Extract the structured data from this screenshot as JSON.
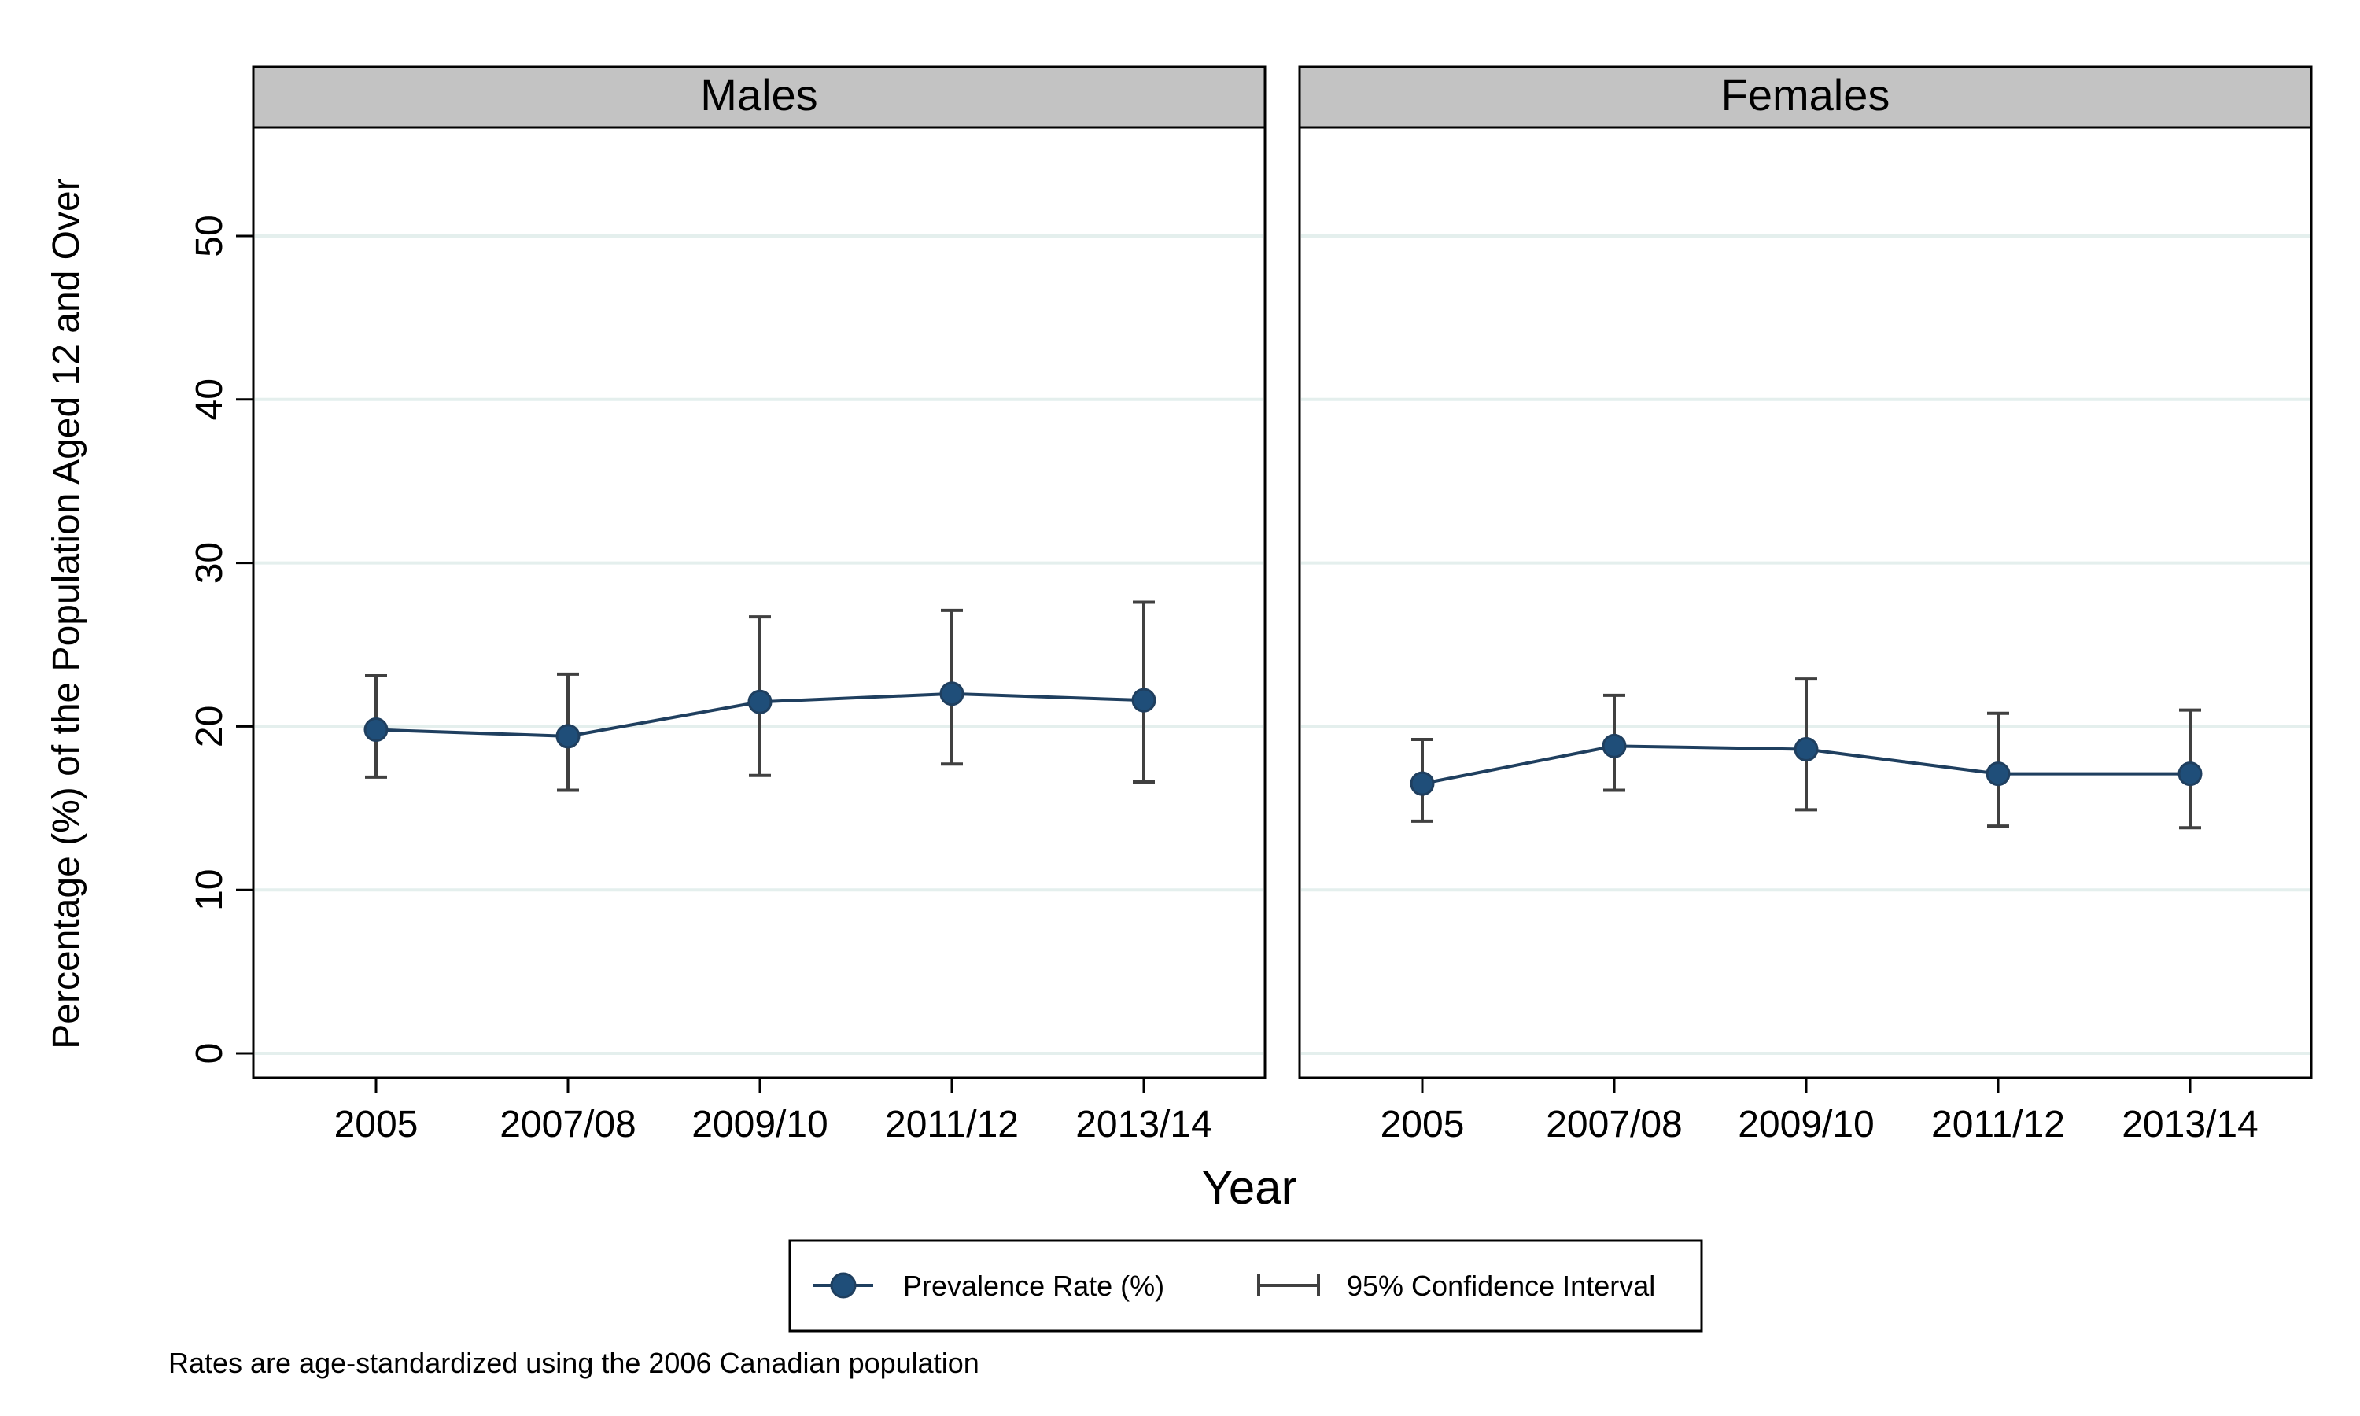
{
  "chart_data": {
    "type": "line",
    "ylabel": "Percentage (%) of the Population Aged 12 and Over",
    "xlabel": "Year",
    "ylim": [
      0,
      55
    ],
    "yticks": [
      0,
      10,
      20,
      30,
      40,
      50
    ],
    "grid": true,
    "categories": [
      "2005",
      "2007/08",
      "2009/10",
      "2011/12",
      "2013/14"
    ],
    "panels": [
      {
        "title": "Males",
        "series": [
          {
            "name": "Prevalence Rate (%)",
            "values": [
              19.8,
              19.4,
              21.5,
              22.0,
              21.6
            ],
            "ci_lower": [
              16.9,
              16.1,
              17.0,
              17.7,
              16.6
            ],
            "ci_upper": [
              23.1,
              23.2,
              26.7,
              27.1,
              27.6
            ]
          }
        ]
      },
      {
        "title": "Females",
        "series": [
          {
            "name": "Prevalence Rate (%)",
            "values": [
              16.5,
              18.8,
              18.6,
              17.1,
              17.1
            ],
            "ci_lower": [
              14.2,
              16.1,
              14.9,
              13.9,
              13.8
            ],
            "ci_upper": [
              19.2,
              21.9,
              22.9,
              20.8,
              21.0
            ]
          }
        ]
      }
    ],
    "legend": {
      "position": "bottom",
      "items": [
        "Prevalence Rate (%)",
        "95% Confidence Interval"
      ]
    },
    "note": "Rates are age-standardized using the 2006 Canadian population",
    "colors": {
      "line": "#1f3f5f",
      "marker": "#1f4e79",
      "ci": "#404040",
      "grid": "#e4efed",
      "strip": "#c3c3c3"
    }
  }
}
